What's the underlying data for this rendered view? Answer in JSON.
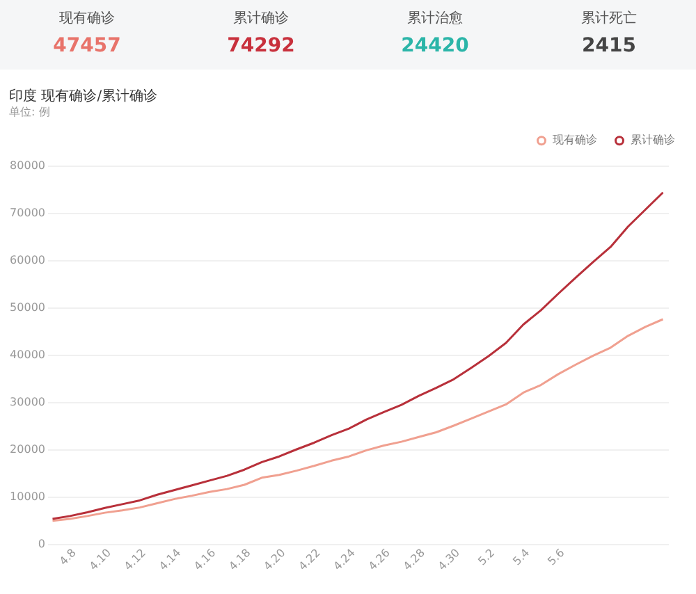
{
  "chart_data": [
    {
      "type": "other",
      "annotations": [
        "现有确诊",
        "47457",
        "累计确诊",
        "74292",
        "累计治愈",
        "24420",
        "累计死亡",
        "2415"
      ]
    },
    {
      "type": "line",
      "title": "印度 现有确诊/累计确诊",
      "subtitle": "单位: 例",
      "categories": [
        null,
        "4.8",
        null,
        "4.10",
        null,
        "4.12",
        null,
        "4.14",
        null,
        "4.16",
        null,
        "4.18",
        null,
        "4.20",
        null,
        "4.22",
        null,
        "4.24",
        null,
        "4.26",
        null,
        "4.28",
        null,
        "4.30",
        null,
        "5.2",
        null,
        "5.4",
        null,
        "5.6",
        null,
        null,
        null,
        null,
        null,
        null
      ],
      "series": [
        {
          "name": "现有确诊",
          "color": "#f0a090",
          "values": [
            4900,
            5300,
            5900,
            6600,
            7100,
            7700,
            8600,
            9500,
            10200,
            11000,
            11600,
            12500,
            14000,
            14600,
            15500,
            16500,
            17600,
            18500,
            19800,
            20800,
            21600,
            22600,
            23600,
            25000,
            26500,
            28000,
            29500,
            32000,
            33600,
            35900,
            37900,
            39800,
            41500,
            44000,
            45900,
            47500
          ]
        },
        {
          "name": "累计确诊",
          "color": "#b8303a",
          "values": [
            5300,
            5900,
            6700,
            7600,
            8400,
            9200,
            10400,
            11400,
            12400,
            13400,
            14400,
            15700,
            17300,
            18500,
            20000,
            21400,
            23000,
            24400,
            26300,
            27900,
            29400,
            31300,
            33000,
            34800,
            37200,
            39700,
            42500,
            46400,
            49400,
            52900,
            56300,
            59600,
            62800,
            67100,
            70700,
            74300
          ]
        }
      ],
      "ylim": [
        0,
        80000
      ],
      "yticks": [
        0,
        10000,
        20000,
        30000,
        40000,
        50000,
        60000,
        70000,
        80000
      ],
      "grid": "y",
      "legend": "top right",
      "marker": "none",
      "line_style": "solid"
    }
  ]
}
